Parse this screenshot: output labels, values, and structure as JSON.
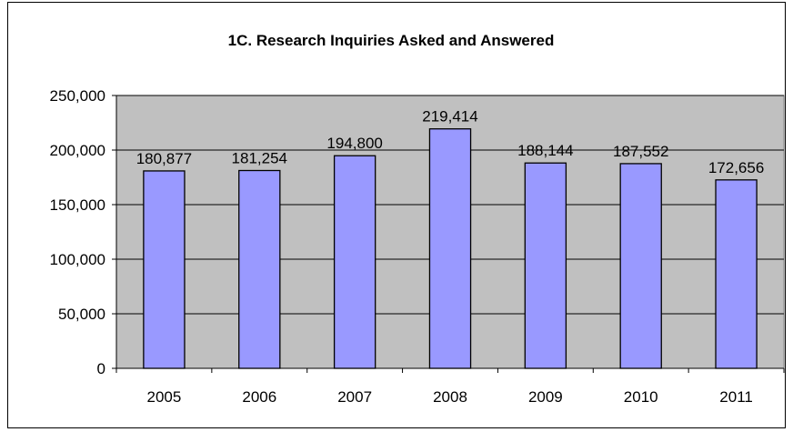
{
  "chart_data": {
    "type": "bar",
    "title": "1C. Research Inquiries Asked and Answered",
    "xlabel": "",
    "ylabel": "",
    "categories": [
      "2005",
      "2006",
      "2007",
      "2008",
      "2009",
      "2010",
      "2011"
    ],
    "values": [
      180877,
      181254,
      194800,
      219414,
      188144,
      187552,
      172656
    ],
    "value_labels": [
      "180,877",
      "181,254",
      "194,800",
      "219,414",
      "188,144",
      "187,552",
      "172,656"
    ],
    "ylim": [
      0,
      250000
    ],
    "yticks": [
      0,
      50000,
      100000,
      150000,
      200000,
      250000
    ],
    "ytick_labels": [
      "0",
      "50,000",
      "100,000",
      "150,000",
      "200,000",
      "250,000"
    ],
    "grid": true,
    "legend": "none",
    "colors": {
      "bar_fill": "#9999ff",
      "plot_background": "#c0c0c0",
      "gridline": "#000000",
      "bar_stroke": "#000000"
    }
  }
}
